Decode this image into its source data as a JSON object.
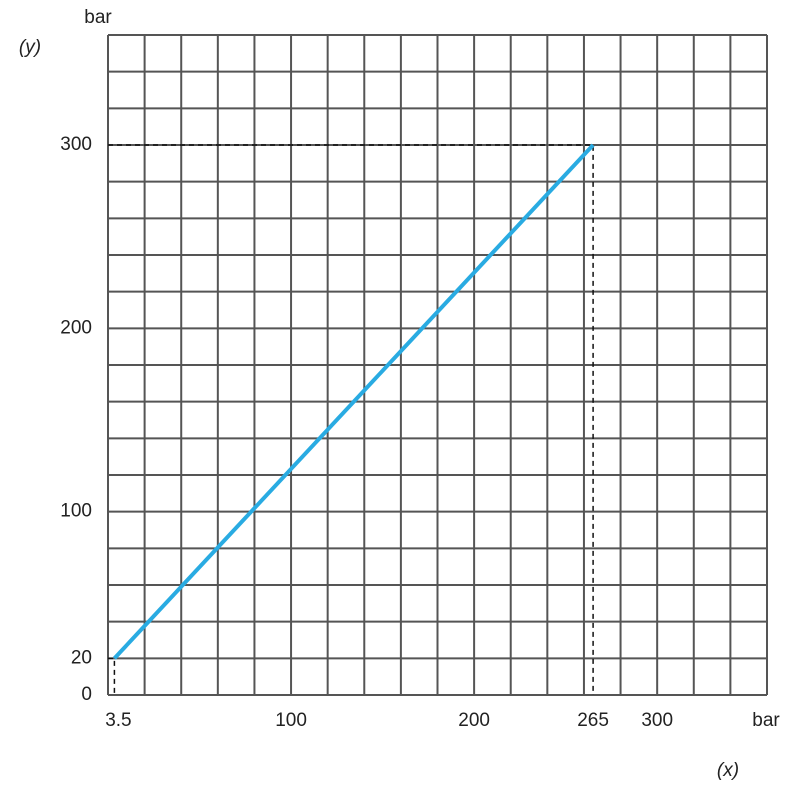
{
  "chart_data": {
    "type": "line",
    "x_axis_unit": "bar",
    "x_axis_label": "(x)",
    "y_axis_unit": "bar",
    "y_axis_label": "(y)",
    "x": [
      3.5,
      265
    ],
    "series": [
      {
        "color": "#29abe2",
        "values": [
          20,
          300
        ]
      }
    ],
    "xlim": [
      0,
      360
    ],
    "ylim": [
      0,
      360
    ],
    "xticks": [
      3.5,
      100,
      200,
      265,
      300
    ],
    "yticks": [
      0,
      20,
      100,
      200,
      300
    ],
    "x_gridlines": [
      0,
      20,
      40,
      60,
      80,
      100,
      120,
      140,
      160,
      180,
      200,
      220,
      240,
      260,
      280,
      300,
      320,
      340,
      360
    ],
    "y_gridlines": [
      0,
      20,
      40,
      60,
      80,
      100,
      120,
      140,
      160,
      180,
      200,
      220,
      240,
      260,
      280,
      300,
      320,
      340,
      360
    ],
    "grid": true
  }
}
